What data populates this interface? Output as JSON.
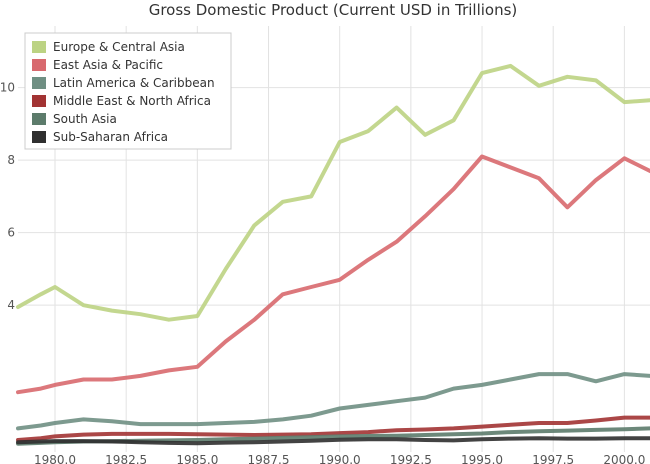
{
  "chart_data": {
    "type": "line",
    "title": "Gross Domestic Product (Current USD in Trillions)",
    "xlabel": "",
    "ylabel": "",
    "xlim": [
      1978.7,
      2000.9
    ],
    "ylim": [
      -0.05,
      11.7
    ],
    "x_ticks": [
      1980,
      1982.5,
      1985,
      1987.5,
      1990,
      1992.5,
      1995,
      1997.5,
      2000
    ],
    "x_tick_labels": [
      "1980.0",
      "1982.5",
      "1985.0",
      "1987.5",
      "1990.0",
      "1992.5",
      "1995.0",
      "1997.5",
      "2000.0"
    ],
    "y_ticks": [
      4,
      6,
      8,
      10
    ],
    "y_tick_labels": [
      "4",
      "6",
      "8",
      "10"
    ],
    "grid": true,
    "legend_position": "top-left",
    "x": [
      1978.7,
      1979.5,
      1980,
      1981,
      1982,
      1983,
      1984,
      1985,
      1986,
      1987,
      1988,
      1989,
      1990,
      1991,
      1992,
      1993,
      1994,
      1995,
      1996,
      1997,
      1998,
      1999,
      2000,
      2000.9
    ],
    "series": [
      {
        "name": "Europe & Central Asia",
        "color": "#bcd383",
        "values": [
          3.95,
          4.3,
          4.5,
          4.0,
          3.85,
          3.75,
          3.6,
          3.7,
          5.0,
          6.2,
          6.85,
          7.0,
          8.5,
          8.8,
          9.45,
          8.7,
          9.1,
          10.4,
          10.6,
          10.05,
          10.3,
          10.2,
          9.6,
          9.65
        ]
      },
      {
        "name": "East Asia & Pacific",
        "color": "#d8696e",
        "values": [
          1.6,
          1.7,
          1.8,
          1.95,
          1.95,
          2.05,
          2.2,
          2.3,
          3.0,
          3.6,
          4.3,
          4.5,
          4.7,
          5.25,
          5.75,
          6.45,
          7.2,
          8.1,
          7.8,
          7.5,
          6.7,
          7.45,
          8.05,
          7.7
        ]
      },
      {
        "name": "Latin America & Caribbean",
        "color": "#6f8f83",
        "values": [
          0.6,
          0.68,
          0.75,
          0.85,
          0.8,
          0.72,
          0.72,
          0.72,
          0.75,
          0.78,
          0.85,
          0.95,
          1.15,
          1.25,
          1.35,
          1.45,
          1.7,
          1.8,
          1.95,
          2.1,
          2.1,
          1.9,
          2.1,
          2.05
        ]
      },
      {
        "name": "Middle East & North Africa",
        "color": "#a23333",
        "values": [
          0.28,
          0.33,
          0.38,
          0.43,
          0.45,
          0.45,
          0.45,
          0.44,
          0.43,
          0.42,
          0.43,
          0.44,
          0.47,
          0.5,
          0.55,
          0.57,
          0.6,
          0.65,
          0.7,
          0.75,
          0.75,
          0.82,
          0.9,
          0.9
        ]
      },
      {
        "name": "South Asia",
        "color": "#5c7b6b",
        "values": [
          0.18,
          0.2,
          0.22,
          0.24,
          0.25,
          0.26,
          0.27,
          0.28,
          0.3,
          0.32,
          0.34,
          0.36,
          0.38,
          0.39,
          0.4,
          0.42,
          0.44,
          0.46,
          0.5,
          0.52,
          0.54,
          0.56,
          0.58,
          0.6
        ]
      },
      {
        "name": "Sub-Saharan Africa",
        "color": "#2f2f2f",
        "values": [
          0.22,
          0.24,
          0.25,
          0.25,
          0.24,
          0.22,
          0.2,
          0.19,
          0.21,
          0.22,
          0.24,
          0.26,
          0.29,
          0.3,
          0.3,
          0.28,
          0.27,
          0.3,
          0.32,
          0.33,
          0.32,
          0.32,
          0.33,
          0.33
        ]
      }
    ]
  }
}
